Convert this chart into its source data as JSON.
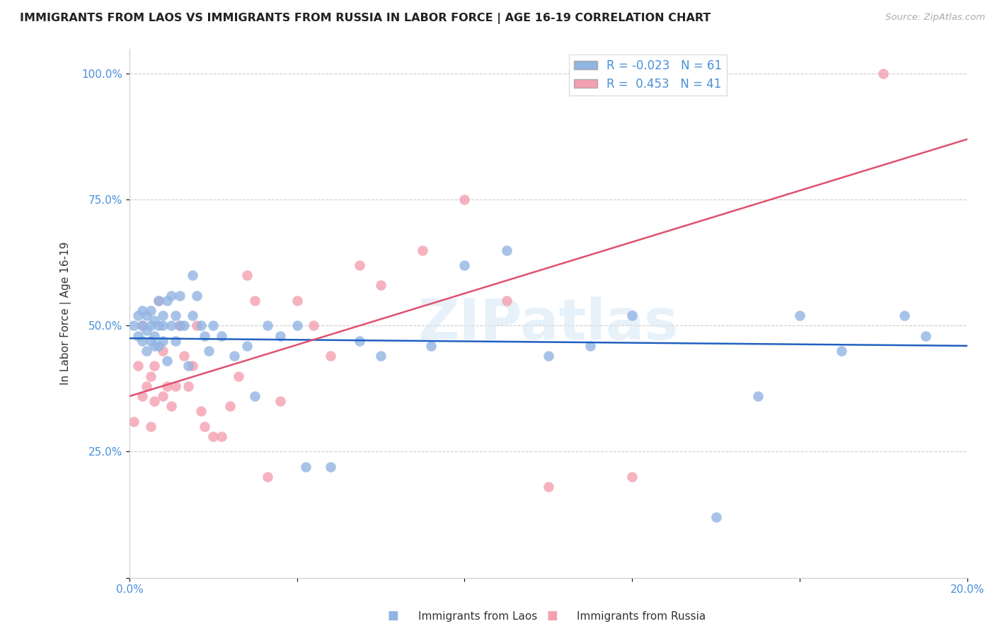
{
  "title": "IMMIGRANTS FROM LAOS VS IMMIGRANTS FROM RUSSIA IN LABOR FORCE | AGE 16-19 CORRELATION CHART",
  "source": "Source: ZipAtlas.com",
  "ylabel": "In Labor Force | Age 16-19",
  "xlim": [
    0.0,
    0.2
  ],
  "ylim": [
    0.0,
    1.05
  ],
  "x_ticks": [
    0.0,
    0.04,
    0.08,
    0.12,
    0.16,
    0.2
  ],
  "x_tick_labels": [
    "0.0%",
    "",
    "",
    "",
    "",
    "20.0%"
  ],
  "y_ticks": [
    0.0,
    0.25,
    0.5,
    0.75,
    1.0
  ],
  "y_tick_labels": [
    "",
    "25.0%",
    "50.0%",
    "75.0%",
    "100.0%"
  ],
  "legend_laos_R": "-0.023",
  "legend_laos_N": "61",
  "legend_russia_R": "0.453",
  "legend_russia_N": "41",
  "laos_color": "#92b4e3",
  "russia_color": "#f4a0b0",
  "laos_line_color": "#2060c0",
  "russia_line_color": "#e05070",
  "watermark": "ZIPatlas",
  "laos_x": [
    0.001,
    0.002,
    0.002,
    0.003,
    0.003,
    0.003,
    0.004,
    0.004,
    0.004,
    0.005,
    0.005,
    0.005,
    0.006,
    0.006,
    0.006,
    0.007,
    0.007,
    0.007,
    0.008,
    0.008,
    0.008,
    0.009,
    0.009,
    0.01,
    0.01,
    0.011,
    0.011,
    0.012,
    0.012,
    0.013,
    0.014,
    0.015,
    0.015,
    0.016,
    0.017,
    0.018,
    0.019,
    0.02,
    0.022,
    0.025,
    0.028,
    0.03,
    0.033,
    0.036,
    0.04,
    0.042,
    0.048,
    0.055,
    0.06,
    0.072,
    0.08,
    0.09,
    0.1,
    0.11,
    0.12,
    0.14,
    0.15,
    0.16,
    0.17,
    0.185,
    0.19
  ],
  "laos_y": [
    0.5,
    0.48,
    0.52,
    0.5,
    0.47,
    0.53,
    0.49,
    0.52,
    0.45,
    0.5,
    0.47,
    0.53,
    0.48,
    0.51,
    0.46,
    0.55,
    0.5,
    0.46,
    0.52,
    0.47,
    0.5,
    0.55,
    0.43,
    0.5,
    0.56,
    0.47,
    0.52,
    0.5,
    0.56,
    0.5,
    0.42,
    0.6,
    0.52,
    0.56,
    0.5,
    0.48,
    0.45,
    0.5,
    0.48,
    0.44,
    0.46,
    0.36,
    0.5,
    0.48,
    0.5,
    0.22,
    0.22,
    0.47,
    0.44,
    0.46,
    0.62,
    0.65,
    0.44,
    0.46,
    0.52,
    0.12,
    0.36,
    0.52,
    0.45,
    0.52,
    0.48
  ],
  "russia_x": [
    0.001,
    0.002,
    0.003,
    0.003,
    0.004,
    0.005,
    0.005,
    0.006,
    0.006,
    0.007,
    0.008,
    0.008,
    0.009,
    0.01,
    0.011,
    0.012,
    0.013,
    0.014,
    0.015,
    0.016,
    0.017,
    0.018,
    0.02,
    0.022,
    0.024,
    0.026,
    0.028,
    0.03,
    0.033,
    0.036,
    0.04,
    0.044,
    0.048,
    0.055,
    0.06,
    0.07,
    0.08,
    0.09,
    0.1,
    0.12,
    0.18
  ],
  "russia_y": [
    0.31,
    0.42,
    0.36,
    0.5,
    0.38,
    0.3,
    0.4,
    0.35,
    0.42,
    0.55,
    0.45,
    0.36,
    0.38,
    0.34,
    0.38,
    0.5,
    0.44,
    0.38,
    0.42,
    0.5,
    0.33,
    0.3,
    0.28,
    0.28,
    0.34,
    0.4,
    0.6,
    0.55,
    0.2,
    0.35,
    0.55,
    0.5,
    0.44,
    0.62,
    0.58,
    0.65,
    0.75,
    0.55,
    0.18,
    0.2,
    1.0
  ],
  "laos_line_y0": 0.475,
  "laos_line_y1": 0.46,
  "russia_line_y0": 0.36,
  "russia_line_y1": 0.87
}
